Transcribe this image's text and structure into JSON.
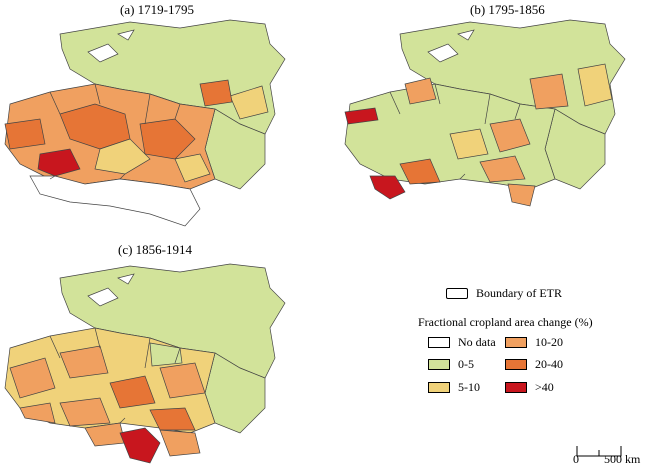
{
  "panels": [
    {
      "title": "(a) 1719-1795"
    },
    {
      "title": "(b) 1795-1856"
    },
    {
      "title": "(c) 1856-1914"
    }
  ],
  "legend": {
    "boundary_label": "Boundary of ETR",
    "title": "Fractional cropland area change (%)",
    "items": [
      {
        "label": "No data",
        "color": "#ffffff"
      },
      {
        "label": "0-5",
        "color": "#d2e39a"
      },
      {
        "label": "5-10",
        "color": "#f0d27a"
      },
      {
        "label": "10-20",
        "color": "#f0a060"
      },
      {
        "label": "20-40",
        "color": "#e67536"
      },
      {
        "label": ">40",
        "color": "#c8161e"
      }
    ]
  },
  "scale_bar": {
    "zero": "0",
    "end": "500 km"
  }
}
